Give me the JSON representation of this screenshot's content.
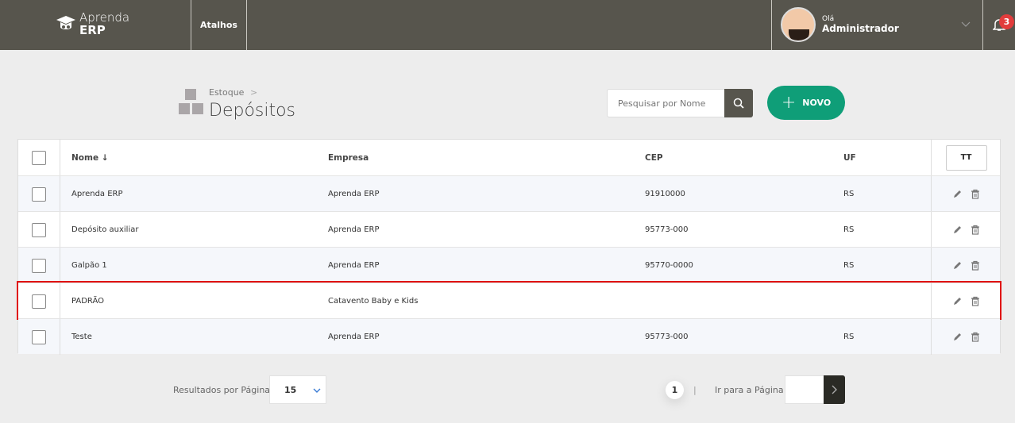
{
  "header": {
    "logo_line1": "Aprenda",
    "logo_line2": "ERP",
    "shortcuts": "Atalhos",
    "greeting": "Olá",
    "user": "Administrador",
    "notifications": "3"
  },
  "page": {
    "breadcrumb": "Estoque",
    "breadcrumb_sep": ">",
    "title": "Depósitos",
    "search_placeholder": "Pesquisar por Nome",
    "new_label": "NOVO",
    "new_plus": "+"
  },
  "table": {
    "columns": {
      "nome": "Nome ↓",
      "empresa": "Empresa",
      "cep": "CEP",
      "uf": "UF",
      "columns_button": "TT"
    },
    "rows": [
      {
        "nome": "Aprenda ERP",
        "empresa": "Aprenda ERP",
        "cep": "91910000",
        "uf": "RS"
      },
      {
        "nome": "Depósito auxiliar",
        "empresa": "Aprenda ERP",
        "cep": "95773-000",
        "uf": "RS"
      },
      {
        "nome": "Galpão 1",
        "empresa": "Aprenda ERP",
        "cep": "95770-0000",
        "uf": "RS"
      },
      {
        "nome": "PADRÃO",
        "empresa": "Catavento Baby e Kids",
        "cep": "",
        "uf": ""
      },
      {
        "nome": "Teste",
        "empresa": "Aprenda ERP",
        "cep": "95773-000",
        "uf": "RS"
      }
    ],
    "highlighted_row": 3
  },
  "pagination": {
    "per_page_label": "Resultados por Página",
    "per_page": "15",
    "current_page": "1",
    "separator": "|",
    "goto_label": "Ir para a Página",
    "goto_value": ""
  },
  "colors": {
    "topbar": "#57554d",
    "accent": "#0f9e78",
    "highlight": "#e01010",
    "badge": "#e23c3c"
  }
}
